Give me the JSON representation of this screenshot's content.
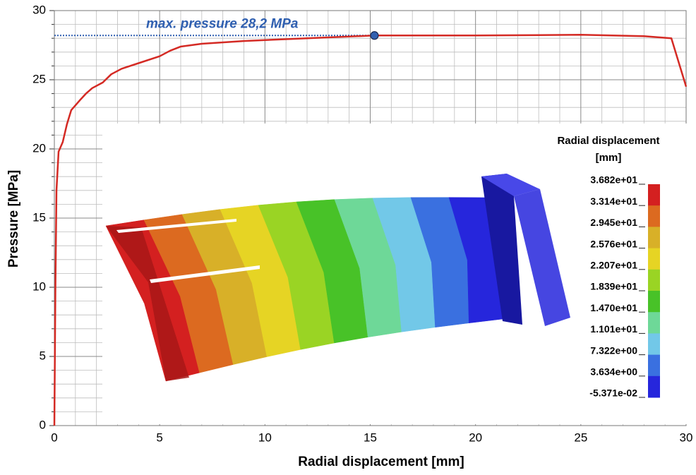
{
  "chart_data": {
    "type": "line",
    "x_label": "Radial displacement  [mm]",
    "y_label": "Pressure [MPa]",
    "x": [
      0,
      0.05,
      0.1,
      0.2,
      0.4,
      0.6,
      0.8,
      1.2,
      1.5,
      1.8,
      2.3,
      2.7,
      3.2,
      4,
      5,
      5.5,
      6,
      7,
      9,
      12,
      15.2,
      20,
      25,
      28,
      29.3,
      30
    ],
    "values": [
      0,
      10,
      17,
      19.8,
      20.5,
      21.8,
      22.8,
      23.5,
      24,
      24.4,
      24.8,
      25.4,
      25.8,
      26.2,
      26.7,
      27.1,
      27.4,
      27.6,
      27.8,
      28.0,
      28.2,
      28.2,
      28.25,
      28.15,
      28.0,
      24.5
    ],
    "color": "#d42a24",
    "xlim": [
      0,
      30
    ],
    "ylim": [
      0,
      30
    ],
    "xticks": [
      0,
      5,
      10,
      15,
      20,
      25,
      30
    ],
    "yticks": [
      0,
      5,
      10,
      15,
      20,
      25,
      30
    ],
    "grid": true,
    "annotation": {
      "text": "max. pressure 28,2 MPa",
      "x": 15.2,
      "y": 28.2,
      "color": "#2f5fb0"
    },
    "colorbar": {
      "title": "Radial displacement",
      "unit": "[mm]",
      "ticks": [
        {
          "value": 36.82,
          "label": "3.682e+01"
        },
        {
          "value": 33.14,
          "label": "3.314e+01"
        },
        {
          "value": 29.45,
          "label": "2.945e+01"
        },
        {
          "value": 25.76,
          "label": "2.576e+01"
        },
        {
          "value": 22.07,
          "label": "2.207e+01"
        },
        {
          "value": 18.39,
          "label": "1.839e+01"
        },
        {
          "value": 14.7,
          "label": "1.470e+01"
        },
        {
          "value": 11.01,
          "label": "1.101e+01"
        },
        {
          "value": 7.322,
          "label": "7.322e+00"
        },
        {
          "value": 3.634,
          "label": "3.634e+00"
        },
        {
          "value": -0.05371,
          "label": "-5.371e-02"
        }
      ],
      "colors": [
        "#d42020",
        "#dc6a20",
        "#d8b028",
        "#e6d424",
        "#9ad424",
        "#48c228",
        "#6ed898",
        "#72c8e8",
        "#3a70e0",
        "#2626dc"
      ]
    }
  }
}
